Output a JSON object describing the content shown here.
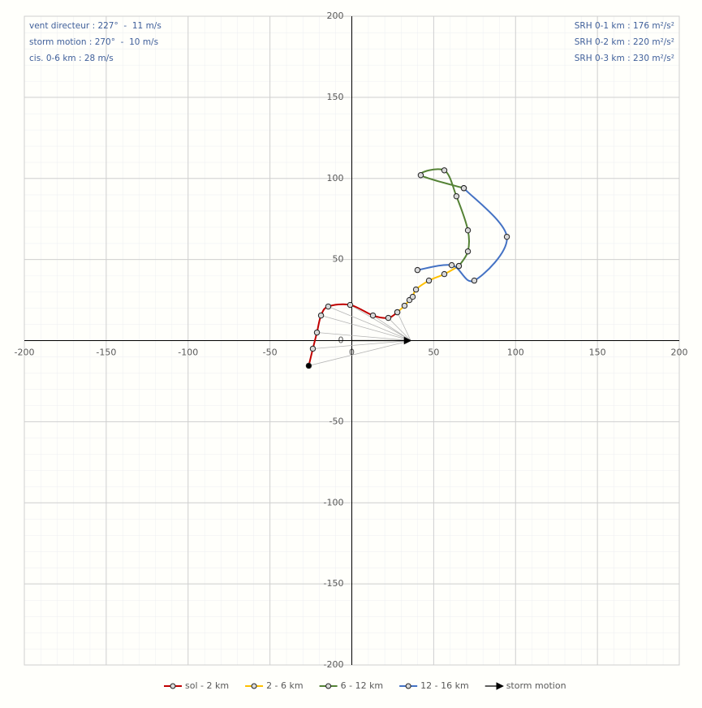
{
  "chart_data": {
    "type": "hodograph",
    "annotations_left": [
      "vent directeur : 227°  -  11 m/s",
      "storm motion : 270°  -  10 m/s",
      "cis. 0-6 km : 28 m/s"
    ],
    "annotations_right": [
      "SRH 0-1 km : 176 m²/s²",
      "SRH 0-2 km : 220 m²/s²",
      "SRH 0-3 km : 230 m²/s²"
    ],
    "xlim": [
      -200,
      200
    ],
    "ylim": [
      -200,
      200
    ],
    "xticks": [
      -200,
      -150,
      -100,
      -50,
      0,
      50,
      100,
      150,
      200
    ],
    "yticks": [
      -200,
      -150,
      -100,
      -50,
      0,
      50,
      100,
      150,
      200
    ],
    "grid": true,
    "series": [
      {
        "name": "sol - 2 km",
        "color": "#c00000",
        "x": [
          -26.3,
          -23.8,
          -21.3,
          -18.8,
          -14.4,
          -1,
          12.9,
          22.3,
          27.8
        ],
        "values": [
          -15.5,
          -5,
          5,
          15.5,
          21,
          22,
          15.5,
          14,
          17.5
        ]
      },
      {
        "name": "2 - 6 km",
        "color": "#ffc000",
        "x": [
          27.8,
          32.2,
          35.2,
          37.2,
          39.2,
          47.1,
          56.5,
          65.4
        ],
        "values": [
          17.5,
          21.5,
          25,
          27,
          31.5,
          37,
          41,
          46
        ]
      },
      {
        "name": "6 - 12 km",
        "color": "#548235",
        "x": [
          65.4,
          70.9,
          70.9,
          63.9,
          56.5,
          42.1,
          68.4
        ],
        "values": [
          46,
          55,
          68,
          89,
          105,
          102,
          94
        ]
      },
      {
        "name": "12 - 16 km",
        "color": "#4472c4",
        "x": [
          68.4,
          94.7,
          74.8,
          61,
          40.1
        ],
        "values": [
          94,
          64,
          37,
          46.5,
          43.5
        ]
      }
    ],
    "storm_motion": {
      "name": "storm motion",
      "x": 36,
      "y": 0,
      "color": "#000000"
    }
  }
}
